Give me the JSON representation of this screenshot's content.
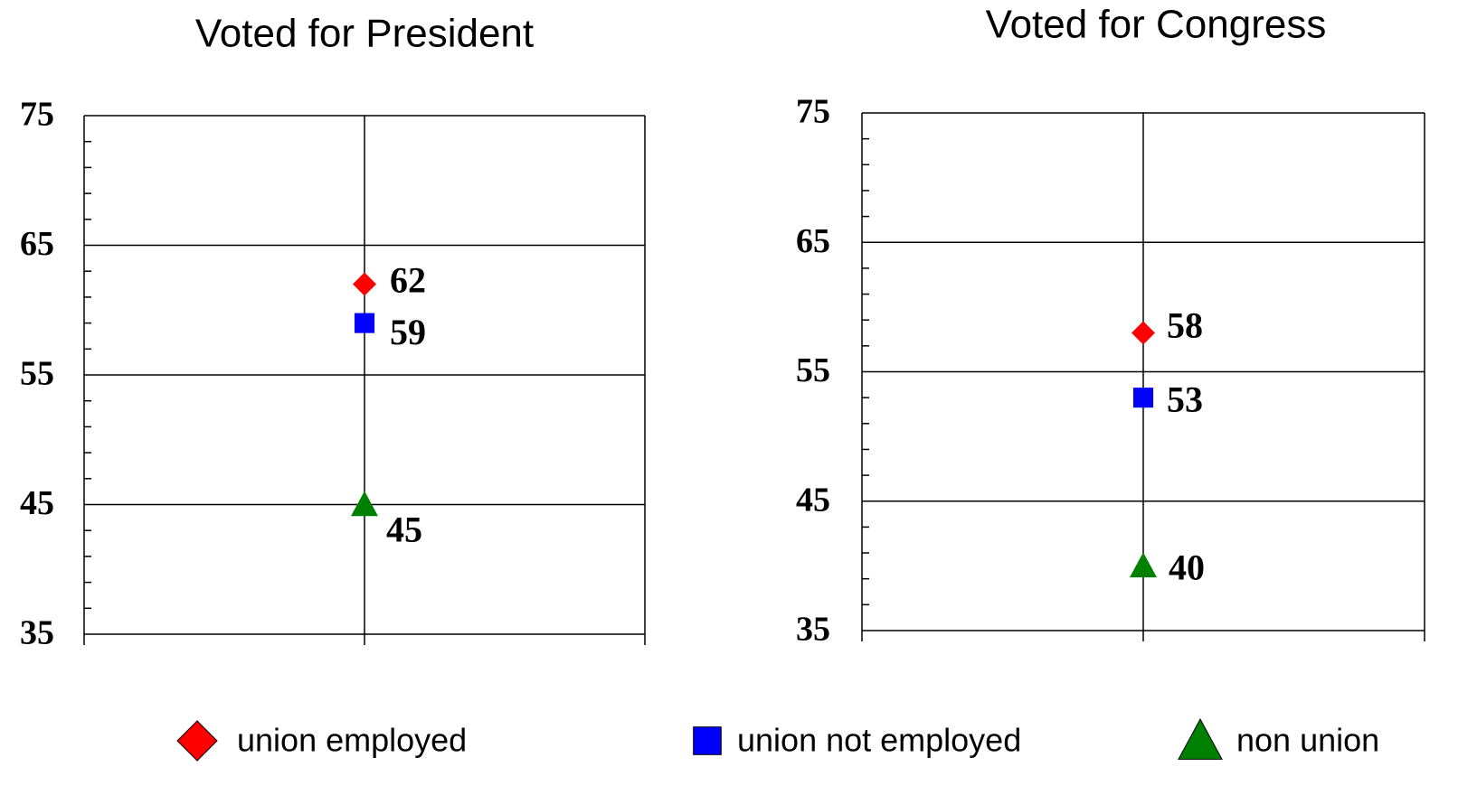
{
  "chart_data": [
    {
      "type": "point",
      "title": "Voted for President",
      "categories": [
        null
      ],
      "series": [
        {
          "name": "union employed",
          "color": "#ff0000",
          "marker": "diamond",
          "values": [
            62
          ]
        },
        {
          "name": "union not employed",
          "color": "#0000ff",
          "marker": "square",
          "values": [
            59
          ]
        },
        {
          "name": "non union",
          "color": "#008000",
          "marker": "triangle",
          "values": [
            45
          ]
        }
      ],
      "ylim": [
        35,
        75
      ],
      "yticks": [
        35,
        45,
        55,
        65,
        75
      ],
      "yminorticks": [
        37,
        39,
        41,
        43,
        47,
        49,
        51,
        53,
        57,
        59,
        61,
        63,
        67,
        69,
        71,
        73
      ],
      "grid": true
    },
    {
      "type": "point",
      "title": "Voted for Congress",
      "categories": [
        null
      ],
      "series": [
        {
          "name": "union employed",
          "color": "#ff0000",
          "marker": "diamond",
          "values": [
            58
          ]
        },
        {
          "name": "union not employed",
          "color": "#0000ff",
          "marker": "square",
          "values": [
            53
          ]
        },
        {
          "name": "non union",
          "color": "#008000",
          "marker": "triangle",
          "values": [
            40
          ]
        }
      ],
      "ylim": [
        35,
        75
      ],
      "yticks": [
        35,
        45,
        55,
        65,
        75
      ],
      "yminorticks": [
        37,
        39,
        41,
        43,
        47,
        49,
        51,
        53,
        57,
        59,
        61,
        63,
        67,
        69,
        71,
        73
      ],
      "grid": true
    }
  ]
}
